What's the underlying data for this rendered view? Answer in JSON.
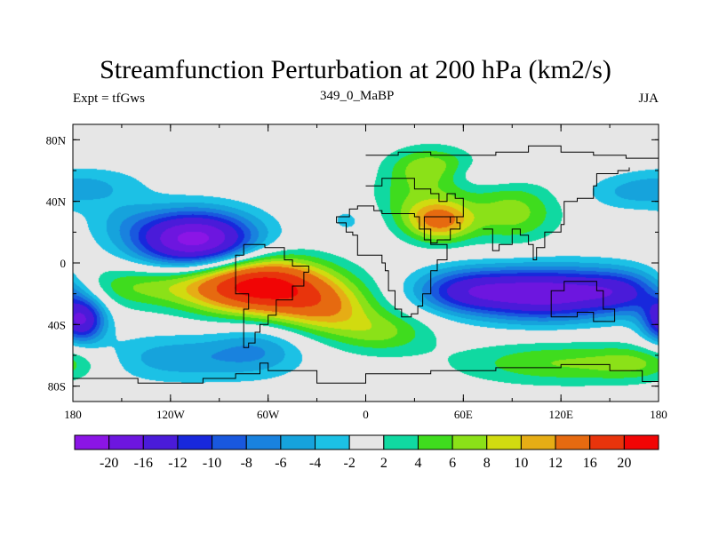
{
  "chart_data": {
    "type": "heatmap",
    "title": "Streamfunction Perturbation at 200 hPa (km2/s)",
    "left_string": "Expt = tfGws",
    "center_string": "349_0_MaBP",
    "right_string": "JJA",
    "x_range": [
      -180,
      180
    ],
    "y_range": [
      -90,
      90
    ],
    "x_ticks": [
      {
        "value": -180,
        "label": "180"
      },
      {
        "value": -120,
        "label": "120W"
      },
      {
        "value": -60,
        "label": "60W"
      },
      {
        "value": 0,
        "label": "0"
      },
      {
        "value": 60,
        "label": "60E"
      },
      {
        "value": 120,
        "label": "120E"
      },
      {
        "value": 180,
        "label": "180"
      }
    ],
    "y_ticks": [
      {
        "value": 80,
        "label": "80N"
      },
      {
        "value": 40,
        "label": "40N"
      },
      {
        "value": 0,
        "label": "0"
      },
      {
        "value": -40,
        "label": "40S"
      },
      {
        "value": -80,
        "label": "80S"
      }
    ],
    "levels": [
      -20,
      -16,
      -12,
      -10,
      -8,
      -6,
      -4,
      -2,
      2,
      4,
      6,
      8,
      10,
      12,
      16,
      20
    ],
    "level_labels": [
      "-20",
      "-16",
      "-12",
      "-10",
      "-8",
      "-6",
      "-4",
      "-2",
      "2",
      "4",
      "6",
      "8",
      "10",
      "12",
      "16",
      "20"
    ],
    "colors": [
      "#8b15e6",
      "#6d16df",
      "#4a1bd9",
      "#1828dc",
      "#1958de",
      "#1982de",
      "#16a3dc",
      "#1cc1e5",
      "#e6e6e6",
      "#10d9a1",
      "#3fdc1e",
      "#8be118",
      "#d1db10",
      "#e6ad15",
      "#e66a10",
      "#e8340c",
      "#f10505"
    ],
    "blobs": [
      {
        "lon": -105,
        "lat": 15,
        "slon": 26,
        "slat": 13,
        "amp": -22
      },
      {
        "lon": -170,
        "lat": 50,
        "slon": 25,
        "slat": 9,
        "amp": -4
      },
      {
        "lon": -150,
        "lat": 28,
        "slon": 18,
        "slat": 10,
        "amp": -2.5
      },
      {
        "lon": -10,
        "lat": 28,
        "slon": 12,
        "slat": 9,
        "amp": -2.5
      },
      {
        "lon": -175,
        "lat": -37,
        "slon": 10,
        "slat": 10,
        "amp": -16
      },
      {
        "lon": -115,
        "lat": -62,
        "slon": 38,
        "slat": 11,
        "amp": -5.5
      },
      {
        "lon": -65,
        "lat": -55,
        "slon": 20,
        "slat": 12,
        "amp": -4.5
      },
      {
        "lon": 60,
        "lat": -18,
        "slon": 22,
        "slat": 10,
        "amp": -10
      },
      {
        "lon": 110,
        "lat": -20,
        "slon": 32,
        "slat": 12,
        "amp": -18
      },
      {
        "lon": 160,
        "lat": -18,
        "slon": 20,
        "slat": 10,
        "amp": -10
      },
      {
        "lon": 160,
        "lat": 45,
        "slon": 20,
        "slat": 8,
        "amp": -3
      },
      {
        "lon": 60,
        "lat": 57,
        "slon": 25,
        "slat": 6,
        "amp": -3
      },
      {
        "lon": 40,
        "lat": 60,
        "slon": 18,
        "slat": 10,
        "amp": 9
      },
      {
        "lon": 45,
        "lat": 28,
        "slon": 15,
        "slat": 10,
        "amp": 13
      },
      {
        "lon": 90,
        "lat": 33,
        "slon": 20,
        "slat": 14,
        "amp": 7
      },
      {
        "lon": 20,
        "lat": 40,
        "slon": 15,
        "slat": 12,
        "amp": 3
      },
      {
        "lon": -65,
        "lat": -15,
        "slon": 30,
        "slat": 13,
        "amp": 22
      },
      {
        "lon": -140,
        "lat": -15,
        "slon": 35,
        "slat": 10,
        "amp": 6
      },
      {
        "lon": -25,
        "lat": -30,
        "slon": 22,
        "slat": 12,
        "amp": 9
      },
      {
        "lon": 10,
        "lat": -45,
        "slon": 22,
        "slat": 10,
        "amp": 6
      },
      {
        "lon": 120,
        "lat": -65,
        "slon": 45,
        "slat": 10,
        "amp": 6
      },
      {
        "lon": 170,
        "lat": -65,
        "slon": 20,
        "slat": 8,
        "amp": 4
      }
    ],
    "coastlines": [
      [
        [
          -18,
          26
        ],
        [
          -12,
          20
        ],
        [
          -8,
          18
        ],
        [
          -5,
          10
        ],
        [
          -5,
          5
        ],
        [
          5,
          5
        ],
        [
          10,
          5
        ],
        [
          10,
          0
        ],
        [
          12,
          -5
        ],
        [
          14,
          -18
        ],
        [
          18,
          -30
        ],
        [
          22,
          -35
        ],
        [
          28,
          -33
        ],
        [
          32,
          -28
        ],
        [
          35,
          -20
        ],
        [
          40,
          -15
        ],
        [
          40,
          -5
        ],
        [
          44,
          2
        ],
        [
          50,
          12
        ],
        [
          45,
          12
        ],
        [
          40,
          15
        ],
        [
          36,
          22
        ],
        [
          33,
          30
        ],
        [
          30,
          32
        ],
        [
          20,
          32
        ],
        [
          10,
          34
        ],
        [
          5,
          37
        ],
        [
          0,
          37
        ],
        [
          -5,
          35
        ],
        [
          -10,
          30
        ],
        [
          -18,
          26
        ]
      ],
      [
        [
          -75,
          12
        ],
        [
          -62,
          10
        ],
        [
          -50,
          2
        ],
        [
          -45,
          -2
        ],
        [
          -35,
          -6
        ],
        [
          -38,
          -15
        ],
        [
          -45,
          -24
        ],
        [
          -55,
          -34
        ],
        [
          -60,
          -40
        ],
        [
          -65,
          -45
        ],
        [
          -68,
          -52
        ],
        [
          -72,
          -55
        ],
        [
          -75,
          -45
        ],
        [
          -75,
          -30
        ],
        [
          -72,
          -20
        ],
        [
          -80,
          -5
        ],
        [
          -80,
          5
        ],
        [
          -75,
          12
        ]
      ],
      [
        [
          48,
          30
        ],
        [
          56,
          26
        ],
        [
          58,
          22
        ],
        [
          52,
          15
        ],
        [
          44,
          13
        ],
        [
          40,
          22
        ],
        [
          36,
          30
        ],
        [
          48,
          30
        ]
      ],
      [
        [
          0,
          70
        ],
        [
          20,
          72
        ],
        [
          40,
          70
        ],
        [
          60,
          70
        ],
        [
          80,
          72
        ],
        [
          100,
          76
        ],
        [
          120,
          72
        ],
        [
          140,
          70
        ],
        [
          160,
          68
        ],
        [
          180,
          68
        ]
      ],
      [
        [
          0,
          50
        ],
        [
          10,
          55
        ],
        [
          25,
          55
        ],
        [
          30,
          48
        ],
        [
          40,
          45
        ],
        [
          45,
          40
        ],
        [
          50,
          45
        ],
        [
          55,
          42
        ],
        [
          60,
          38
        ],
        [
          60,
          30
        ],
        [
          52,
          26
        ]
      ],
      [
        [
          72,
          22
        ],
        [
          78,
          8
        ],
        [
          82,
          12
        ],
        [
          90,
          22
        ],
        [
          95,
          18
        ],
        [
          100,
          12
        ],
        [
          103,
          2
        ],
        [
          105,
          10
        ],
        [
          110,
          20
        ],
        [
          120,
          25
        ],
        [
          122,
          32
        ],
        [
          122,
          40
        ],
        [
          130,
          42
        ],
        [
          140,
          50
        ],
        [
          142,
          58
        ],
        [
          155,
          60
        ],
        [
          162,
          62
        ]
      ],
      [
        [
          114,
          -22
        ],
        [
          114,
          -35
        ],
        [
          130,
          -32
        ],
        [
          140,
          -38
        ],
        [
          150,
          -38
        ],
        [
          153,
          -30
        ],
        [
          146,
          -18
        ],
        [
          142,
          -12
        ],
        [
          130,
          -12
        ],
        [
          122,
          -18
        ],
        [
          114,
          -22
        ]
      ],
      [
        [
          -180,
          -75
        ],
        [
          -140,
          -78
        ],
        [
          -100,
          -75
        ],
        [
          -80,
          -72
        ],
        [
          -65,
          -65
        ],
        [
          -60,
          -70
        ],
        [
          -30,
          -78
        ],
        [
          0,
          -72
        ],
        [
          40,
          -70
        ],
        [
          80,
          -68
        ],
        [
          120,
          -66
        ],
        [
          150,
          -70
        ],
        [
          170,
          -77
        ],
        [
          180,
          -80
        ]
      ]
    ]
  }
}
